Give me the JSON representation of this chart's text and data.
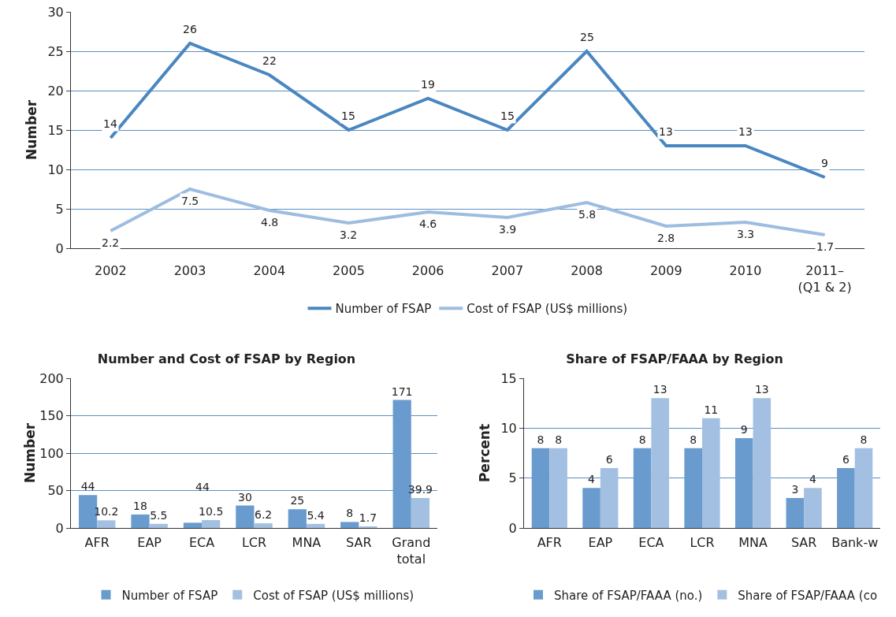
{
  "chart_data": [
    {
      "type": "line",
      "ylabel": "Number",
      "categories": [
        "2002",
        "2003",
        "2004",
        "2005",
        "2006",
        "2007",
        "2008",
        "2009",
        "2010",
        "2011–\n(Q1 & 2)"
      ],
      "series": [
        {
          "name": "Number of FSAP",
          "color": "#4a86c0",
          "values": [
            14,
            26,
            22,
            15,
            19,
            15,
            25,
            13,
            13,
            9
          ]
        },
        {
          "name": "Cost of FSAP (US$ millions)",
          "color": "#9dbde0",
          "values": [
            2.2,
            7.5,
            4.8,
            3.2,
            4.6,
            3.9,
            5.8,
            2.8,
            3.3,
            1.7
          ]
        }
      ],
      "ylim": [
        0,
        30
      ],
      "yticks": [
        0,
        5,
        10,
        15,
        20,
        25,
        30
      ],
      "grid": "y",
      "legend": "bottom",
      "data_labels": true,
      "marker": "none",
      "line_style": "solid"
    },
    {
      "type": "bar",
      "title": "Number and Cost of FSAP by Region",
      "ylabel": "Number",
      "categories": [
        "AFR",
        "EAP",
        "ECA",
        "LCR",
        "MNA",
        "SAR",
        "Grand\ntotal"
      ],
      "series": [
        {
          "name": "Number of FSAP",
          "color": "#6a9bcf",
          "values": [
            44,
            18,
            7,
            30,
            25,
            8,
            171
          ],
          "value_labels": [
            "44",
            "18",
            null,
            "30",
            "25",
            "8",
            "171"
          ]
        },
        {
          "name": "Cost of FSAP (US$ millions)",
          "color": "#a3c0e2",
          "values": [
            10.2,
            5.5,
            10.5,
            6.2,
            5.4,
            1.7,
            39.9
          ],
          "value_labels": [
            "10.2",
            "5.5",
            "10.5",
            "6.2",
            "5.4",
            "1.7",
            "39.9"
          ]
        }
      ],
      "annotations": [
        "44"
      ],
      "ylim": [
        0,
        200
      ],
      "yticks": [
        0,
        50,
        100,
        150,
        200
      ],
      "grid": "y",
      "legend": "bottom"
    },
    {
      "type": "bar",
      "title": "Share of FSAP/FAAA by Region",
      "ylabel": "Percent",
      "categories": [
        "AFR",
        "EAP",
        "ECA",
        "LCR",
        "MNA",
        "SAR",
        "Bank-w"
      ],
      "series": [
        {
          "name": "Share of FSAP/FAAA (no.)",
          "color": "#6a9bcf",
          "values": [
            8,
            4,
            8,
            8,
            9,
            3,
            6
          ]
        },
        {
          "name": "Share of FSAP/FAAA (co",
          "color": "#a3c0e2",
          "values": [
            8,
            6,
            13,
            11,
            13,
            4,
            8
          ]
        }
      ],
      "ylim": [
        0,
        15
      ],
      "yticks": [
        0,
        5,
        10,
        15
      ],
      "grid": "y",
      "legend": "bottom",
      "data_labels": true
    }
  ]
}
